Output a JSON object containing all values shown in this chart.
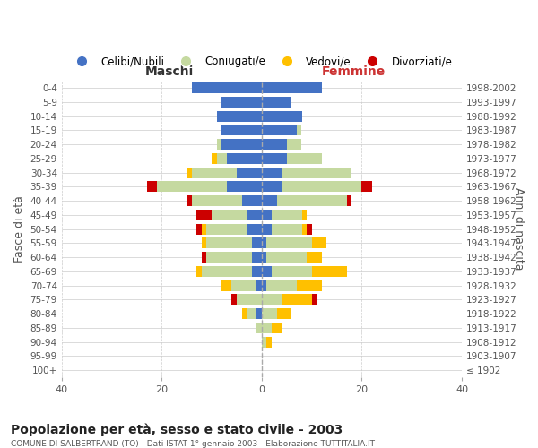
{
  "age_groups": [
    "100+",
    "95-99",
    "90-94",
    "85-89",
    "80-84",
    "75-79",
    "70-74",
    "65-69",
    "60-64",
    "55-59",
    "50-54",
    "45-49",
    "40-44",
    "35-39",
    "30-34",
    "25-29",
    "20-24",
    "15-19",
    "10-14",
    "5-9",
    "0-4"
  ],
  "birth_years": [
    "≤ 1902",
    "1903-1907",
    "1908-1912",
    "1913-1917",
    "1918-1922",
    "1923-1927",
    "1928-1932",
    "1933-1937",
    "1938-1942",
    "1943-1947",
    "1948-1952",
    "1953-1957",
    "1958-1962",
    "1963-1967",
    "1968-1972",
    "1973-1977",
    "1978-1982",
    "1983-1987",
    "1988-1992",
    "1993-1997",
    "1998-2002"
  ],
  "males": {
    "celibe": [
      0,
      0,
      0,
      0,
      1,
      0,
      1,
      2,
      2,
      2,
      3,
      3,
      4,
      7,
      5,
      7,
      8,
      8,
      9,
      8,
      14
    ],
    "coniugato": [
      0,
      0,
      0,
      1,
      2,
      5,
      5,
      10,
      9,
      9,
      8,
      7,
      10,
      14,
      9,
      2,
      1,
      0,
      0,
      0,
      0
    ],
    "vedovo": [
      0,
      0,
      0,
      0,
      1,
      0,
      2,
      1,
      0,
      1,
      1,
      0,
      0,
      0,
      1,
      1,
      0,
      0,
      0,
      0,
      0
    ],
    "divorziato": [
      0,
      0,
      0,
      0,
      0,
      1,
      0,
      0,
      1,
      0,
      1,
      3,
      1,
      2,
      0,
      0,
      0,
      0,
      0,
      0,
      0
    ]
  },
  "females": {
    "nubile": [
      0,
      0,
      0,
      0,
      0,
      0,
      1,
      2,
      1,
      1,
      2,
      2,
      3,
      4,
      4,
      5,
      5,
      7,
      8,
      6,
      12
    ],
    "coniugata": [
      0,
      0,
      1,
      2,
      3,
      4,
      6,
      8,
      8,
      9,
      6,
      6,
      14,
      16,
      14,
      7,
      3,
      1,
      0,
      0,
      0
    ],
    "vedova": [
      0,
      0,
      1,
      2,
      3,
      6,
      5,
      7,
      3,
      3,
      1,
      1,
      0,
      0,
      0,
      0,
      0,
      0,
      0,
      0,
      0
    ],
    "divorziata": [
      0,
      0,
      0,
      0,
      0,
      1,
      0,
      0,
      0,
      0,
      1,
      0,
      1,
      2,
      0,
      0,
      0,
      0,
      0,
      0,
      0
    ]
  },
  "colors": {
    "celibe": "#4472c4",
    "coniugato": "#c5d9a0",
    "vedovo": "#ffc000",
    "divorziato": "#cc0000"
  },
  "xlim": 40,
  "title": "Popolazione per età, sesso e stato civile - 2003",
  "subtitle": "COMUNE DI SALBERTRAND (TO) - Dati ISTAT 1° gennaio 2003 - Elaborazione TUTTITALIA.IT",
  "xlabel_left": "Maschi",
  "xlabel_right": "Femmine",
  "ylabel_left": "Fasce di età",
  "ylabel_right": "Anni di nascita",
  "legend_labels": [
    "Celibi/Nubili",
    "Coniugati/e",
    "Vedovi/e",
    "Divorziati/e"
  ]
}
